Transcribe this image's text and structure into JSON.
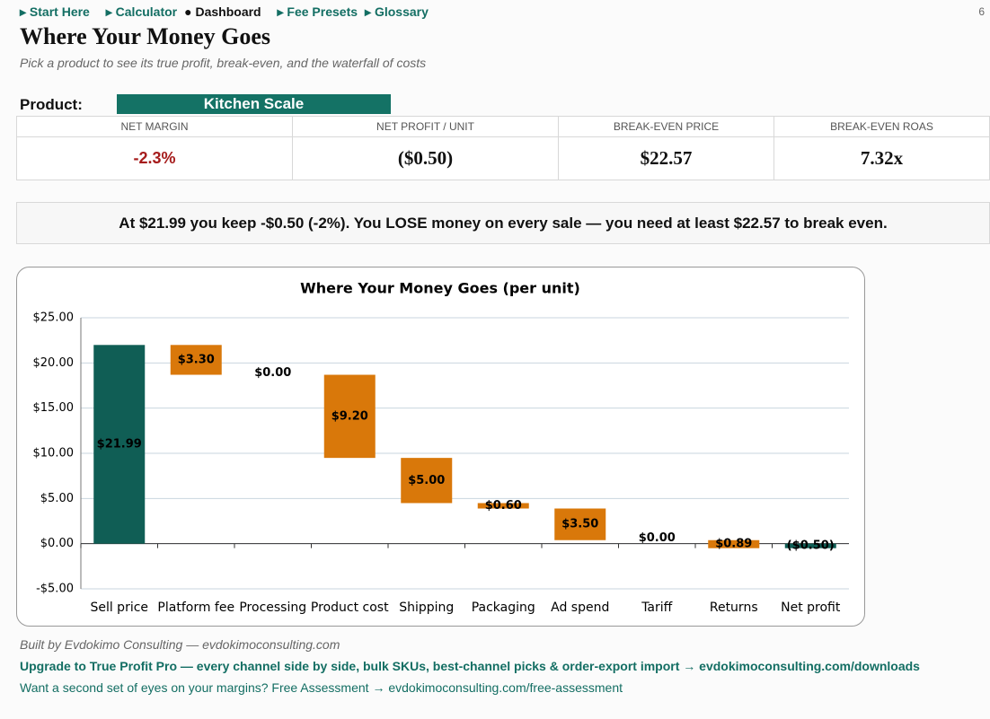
{
  "nav": {
    "items": [
      "Start Here",
      "Calculator",
      "Dashboard",
      "Fee Presets",
      "Glossary"
    ],
    "page": "6"
  },
  "header": {
    "title": "Where Your Money Goes",
    "subtitle": "Pick a product to see its true profit, break-even, and the waterfall of costs"
  },
  "product": {
    "label": "Product:",
    "value": "Kitchen Scale"
  },
  "kpis": [
    {
      "label": "NET MARGIN",
      "value": "-2.3%"
    },
    {
      "label": "NET PROFIT / UNIT",
      "value": "($0.50)"
    },
    {
      "label": "BREAK-EVEN PRICE",
      "value": "$22.57"
    },
    {
      "label": "BREAK-EVEN ROAS",
      "value": "7.32x"
    }
  ],
  "message": "At $21.99 you keep -$0.50 (-2%). You LOSE money on every sale — you need at least $22.57 to break even.",
  "chart_data": {
    "type": "waterfall",
    "title": "Where Your Money Goes (per unit)",
    "categories": [
      "Sell price",
      "Platform fee",
      "Processing",
      "Product cost",
      "Shipping",
      "Packaging",
      "Ad spend",
      "Tariff",
      "Returns",
      "Net profit"
    ],
    "values": [
      21.99,
      3.3,
      0.0,
      9.2,
      5.0,
      0.6,
      3.5,
      0.0,
      0.89,
      -0.5
    ],
    "value_labels": [
      "$21.99",
      "$3.30",
      "$0.00",
      "$9.20",
      "$5.00",
      "$0.60",
      "$3.50",
      "$0.00",
      "$0.89",
      "($0.50)"
    ],
    "total_color": "#105e55",
    "cost_color": "#d9780a",
    "ylim": [
      -5,
      25
    ],
    "yticks": [
      {
        "value": -5,
        "label": "-$5.00"
      },
      {
        "value": 0,
        "label": "$0.00"
      },
      {
        "value": 5,
        "label": "$5.00"
      },
      {
        "value": 10,
        "label": "$10.00"
      },
      {
        "value": 15,
        "label": "$15.00"
      },
      {
        "value": 20,
        "label": "$20.00"
      },
      {
        "value": 25,
        "label": "$25.00"
      }
    ],
    "grid": true
  },
  "footer": {
    "credit": "Built by Evdokimo Consulting — evdokimoconsulting.com",
    "upgrade": "Upgrade to True Profit Pro — every channel side by side, bulk SKUs, best-channel picks & order-export import → evdokimoconsulting.com/downloads",
    "assessment": "Want a second set of eyes on your margins? Free Assessment → evdokimoconsulting.com/free-assessment"
  }
}
